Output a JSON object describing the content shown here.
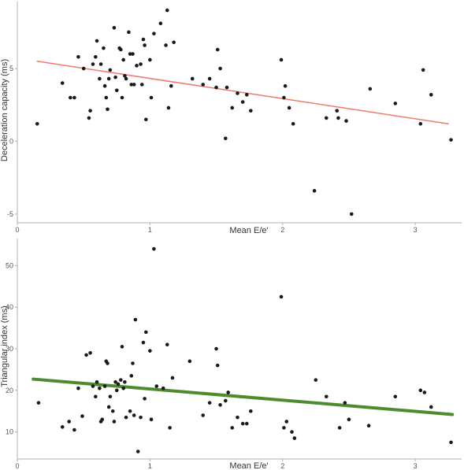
{
  "colors": {
    "point": "#1a1a1a",
    "axis": "#b0b0b0",
    "fit_top": "#f07a6a",
    "fit_bottom": "#4e8a2e"
  },
  "chart_data": [
    {
      "type": "scatter",
      "title": "",
      "xlabel": "Mean E/e'",
      "ylabel": "Deceleration capacity (ms)",
      "xlim": [
        0,
        3.35
      ],
      "ylim": [
        -5.6,
        9.6
      ],
      "xticks": [
        "0",
        "1",
        "2",
        "3"
      ],
      "yticks": [
        "-5",
        "0",
        "5"
      ],
      "grid": false,
      "fit_line": {
        "x": [
          0.15,
          3.25
        ],
        "y": [
          5.5,
          1.2
        ]
      },
      "x": [
        0.15,
        0.34,
        0.4,
        0.43,
        0.46,
        0.5,
        0.54,
        0.55,
        0.57,
        0.59,
        0.6,
        0.62,
        0.63,
        0.65,
        0.66,
        0.67,
        0.68,
        0.69,
        0.7,
        0.73,
        0.74,
        0.75,
        0.77,
        0.78,
        0.79,
        0.8,
        0.81,
        0.82,
        0.84,
        0.85,
        0.86,
        0.87,
        0.88,
        0.9,
        0.93,
        0.94,
        0.95,
        0.96,
        0.97,
        1.0,
        1.01,
        1.03,
        1.08,
        1.12,
        1.13,
        1.14,
        1.16,
        1.18,
        1.32,
        1.4,
        1.45,
        1.5,
        1.51,
        1.53,
        1.57,
        1.58,
        1.62,
        1.66,
        1.7,
        1.73,
        1.76,
        1.99,
        2.01,
        2.02,
        2.05,
        2.08,
        2.24,
        2.33,
        2.41,
        2.42,
        2.48,
        2.52,
        2.66,
        2.85,
        3.04,
        3.06,
        3.12,
        3.27
      ],
      "y": [
        1.2,
        4.0,
        3.0,
        3.0,
        5.8,
        5.0,
        1.6,
        2.1,
        5.3,
        5.8,
        6.9,
        4.3,
        5.3,
        6.4,
        3.8,
        3.0,
        2.2,
        4.3,
        4.9,
        7.8,
        4.4,
        3.5,
        6.4,
        6.3,
        3.0,
        5.6,
        4.5,
        4.3,
        7.5,
        6.0,
        3.9,
        6.0,
        3.9,
        5.2,
        5.3,
        3.9,
        7.0,
        6.6,
        1.5,
        5.6,
        3.0,
        7.4,
        8.1,
        6.6,
        9.0,
        2.3,
        3.8,
        6.8,
        4.3,
        3.9,
        4.3,
        3.7,
        6.3,
        5.0,
        0.2,
        3.7,
        2.3,
        3.3,
        2.7,
        3.2,
        2.1,
        5.6,
        3.0,
        3.8,
        2.3,
        1.2,
        -3.4,
        1.6,
        2.1,
        1.6,
        1.4,
        -5.0,
        3.6,
        2.6,
        1.2,
        4.9,
        3.2,
        0.1
      ]
    },
    {
      "type": "scatter",
      "title": "",
      "xlabel": "Mean E/e'",
      "ylabel": "Triangular index (ms)",
      "xlim": [
        0,
        3.35
      ],
      "ylim": [
        3.5,
        56.5
      ],
      "xticks": [
        "0",
        "1",
        "2",
        "3"
      ],
      "yticks": [
        "10",
        "20",
        "30",
        "40",
        "50"
      ],
      "grid": false,
      "fit_line": {
        "x": [
          0.12,
          3.28
        ],
        "y": [
          22.7,
          14.2
        ]
      },
      "x": [
        0.16,
        0.34,
        0.39,
        0.43,
        0.46,
        0.49,
        0.52,
        0.55,
        0.57,
        0.59,
        0.6,
        0.62,
        0.63,
        0.64,
        0.66,
        0.67,
        0.68,
        0.69,
        0.7,
        0.72,
        0.73,
        0.74,
        0.75,
        0.76,
        0.78,
        0.79,
        0.8,
        0.81,
        0.82,
        0.85,
        0.86,
        0.87,
        0.88,
        0.89,
        0.91,
        0.93,
        0.95,
        0.96,
        0.97,
        1.0,
        1.01,
        1.03,
        1.05,
        1.1,
        1.13,
        1.15,
        1.17,
        1.3,
        1.4,
        1.45,
        1.5,
        1.51,
        1.53,
        1.57,
        1.59,
        1.62,
        1.66,
        1.7,
        1.73,
        1.76,
        1.99,
        2.01,
        2.03,
        2.07,
        2.09,
        2.25,
        2.33,
        2.43,
        2.47,
        2.5,
        2.65,
        2.85,
        3.04,
        3.07,
        3.12,
        3.27
      ],
      "y": [
        17.0,
        11.2,
        12.5,
        10.5,
        20.5,
        13.8,
        28.5,
        29.0,
        21.0,
        18.5,
        22.0,
        20.5,
        12.5,
        13.0,
        21.0,
        27.0,
        26.5,
        16.0,
        18.5,
        15.0,
        12.5,
        22.0,
        20.0,
        21.5,
        22.5,
        30.5,
        20.5,
        22.0,
        13.5,
        15.0,
        23.5,
        26.5,
        14.0,
        37.0,
        5.3,
        13.5,
        31.5,
        18.0,
        34.0,
        29.5,
        13.0,
        54.0,
        21.0,
        20.5,
        31.0,
        11.0,
        23.0,
        27.0,
        14.0,
        17.0,
        30.0,
        26.0,
        16.5,
        17.5,
        19.5,
        11.0,
        13.5,
        12.0,
        12.0,
        15.0,
        42.5,
        11.0,
        12.5,
        10.0,
        8.5,
        22.5,
        18.5,
        11.0,
        17.0,
        13.0,
        11.5,
        18.5,
        20.0,
        19.5,
        16.0,
        7.5
      ]
    }
  ]
}
